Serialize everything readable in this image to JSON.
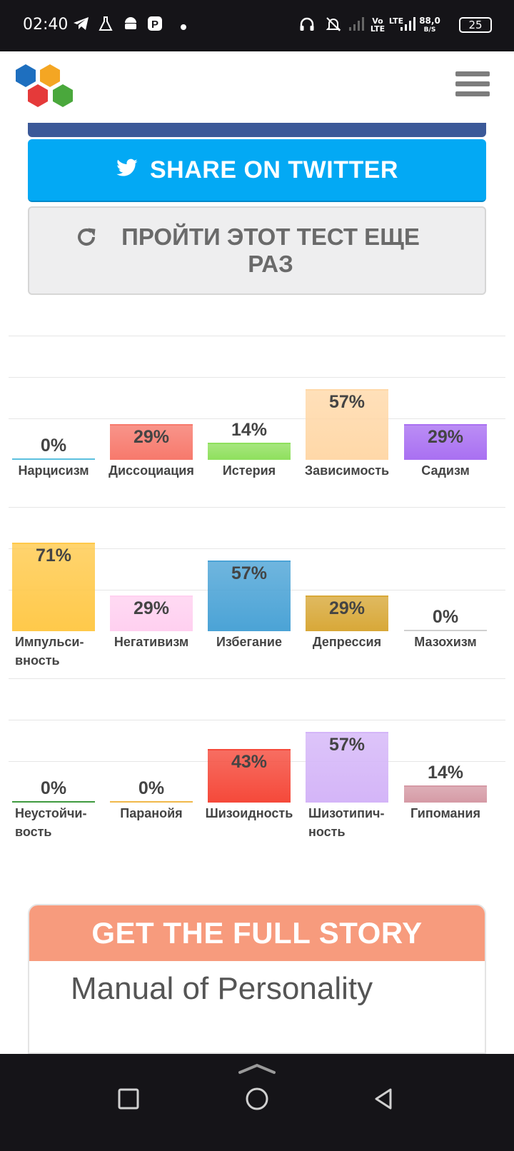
{
  "status_bar": {
    "time": "02:40",
    "network_volte": "Vo\nLTE",
    "network_lte": "LTE",
    "speed_value": "88,0",
    "speed_unit": "B/S",
    "battery": "25"
  },
  "buttons": {
    "twitter_label": "SHARE ON TWITTER",
    "retake_label": "ПРОЙТИ ЭТОТ ТЕСТ ЕЩЕ РАЗ"
  },
  "chart_data": {
    "type": "bar",
    "ylim": [
      0,
      100
    ],
    "unit": "%",
    "rows": [
      {
        "categories": [
          "Нарцисизм",
          "Диссоциация",
          "Истерия",
          "Зависимость",
          "Садизм"
        ],
        "values": [
          0,
          29,
          14,
          57,
          29
        ],
        "labels": [
          "0%",
          "29%",
          "14%",
          "57%",
          "29%"
        ],
        "colors": [
          "#5bc0de",
          "#f7796c",
          "#8fe05d",
          "#ffd8a8",
          "#a970f2"
        ]
      },
      {
        "categories": [
          "Импульси-вность",
          "Негативизм",
          "Избегание",
          "Депрессия",
          "Мазохизм"
        ],
        "values": [
          71,
          29,
          57,
          29,
          0
        ],
        "labels": [
          "71%",
          "29%",
          "57%",
          "29%",
          "0%"
        ],
        "colors": [
          "#ffc94a",
          "#ffd0f0",
          "#4ba3d6",
          "#d8a838",
          "#d0d0d0"
        ]
      },
      {
        "categories": [
          "Неустойчи-вость",
          "Паранойя",
          "Шизоидность",
          "Шизотипич-ность",
          "Гипомания"
        ],
        "values": [
          0,
          0,
          43,
          57,
          14
        ],
        "labels": [
          "0%",
          "0%",
          "43%",
          "57%",
          "14%"
        ],
        "colors": [
          "#3f9a3f",
          "#f0b84a",
          "#f5493a",
          "#d4b5f8",
          "#d59aa5"
        ]
      }
    ]
  },
  "story": {
    "header": "GET THE FULL STORY",
    "title": "Manual of Personality"
  }
}
